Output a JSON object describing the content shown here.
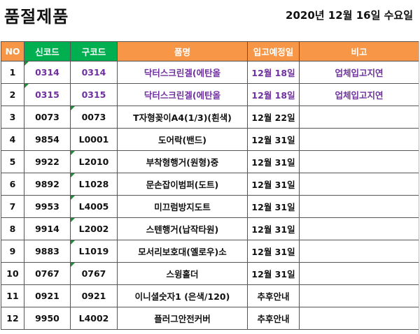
{
  "title": "품절제품",
  "date": "2020년 12월 16일 수요일",
  "colors": {
    "header_orange": "#f79646",
    "header_green": "#00b050",
    "purple_text": "#7030a0"
  },
  "columns": [
    "NO",
    "신코드",
    "구코드",
    "품명",
    "입고예정일",
    "비고"
  ],
  "rows": [
    {
      "no": "1",
      "new_code": "0314",
      "old_code": "0314",
      "name": "닥터스크린겔(에탄올",
      "date": "12월 18일",
      "note": "업체입고지연",
      "purple": true
    },
    {
      "no": "2",
      "new_code": "0315",
      "old_code": "0315",
      "name": "닥터스크린겔(에탄올",
      "date": "12월 18일",
      "note": "업체입고지연",
      "purple": true
    },
    {
      "no": "3",
      "new_code": "0073",
      "old_code": "0073",
      "name": "T자형꽂이A4(1/3)(흰색)",
      "date": "12월 22일",
      "note": ""
    },
    {
      "no": "4",
      "new_code": "9854",
      "old_code": "L0001",
      "name": "도어락(밴드)",
      "date": "12월 31일",
      "note": ""
    },
    {
      "no": "5",
      "new_code": "9922",
      "old_code": "L2010",
      "name": "부착형행거(원형)중",
      "date": "12월 31일",
      "note": ""
    },
    {
      "no": "6",
      "new_code": "9892",
      "old_code": "L1028",
      "name": "문손잡이범퍼(도트)",
      "date": "12월 31일",
      "note": ""
    },
    {
      "no": "7",
      "new_code": "9953",
      "old_code": "L4005",
      "name": "미끄럼방지도트",
      "date": "12월 31일",
      "note": ""
    },
    {
      "no": "8",
      "new_code": "9914",
      "old_code": "L2002",
      "name": "스텐행거(납작타원)",
      "date": "12월 31일",
      "note": ""
    },
    {
      "no": "9",
      "new_code": "9883",
      "old_code": "L1019",
      "name": "모서리보호대(옐로우)소",
      "date": "12월 31일",
      "note": ""
    },
    {
      "no": "10",
      "new_code": "0767",
      "old_code": "0767",
      "name": "스윙홀더",
      "date": "12월 31일",
      "note": ""
    },
    {
      "no": "11",
      "new_code": "0921",
      "old_code": "0921",
      "name": "이니셜숫자1 (은색/120)",
      "date": "추후안내",
      "note": ""
    },
    {
      "no": "12",
      "new_code": "9950",
      "old_code": "L4002",
      "name": "플러그안전커버",
      "date": "추후안내",
      "note": ""
    }
  ]
}
